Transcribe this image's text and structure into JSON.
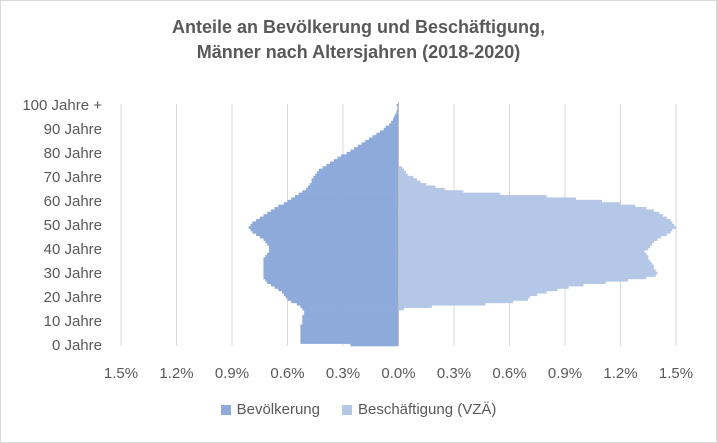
{
  "chart_data": {
    "type": "bar",
    "orientation": "horizontal-pyramid",
    "title_line1": "Anteile an Bevölkerung und Beschäftigung,",
    "title_line2": "Männer nach Altersjahren (2018-2020)",
    "xlabel": "",
    "ylabel": "",
    "xlim": [
      -1.5,
      1.5
    ],
    "x_ticks": [
      -1.5,
      -1.2,
      -0.9,
      -0.6,
      -0.3,
      0.0,
      0.3,
      0.6,
      0.9,
      1.2,
      1.5
    ],
    "x_tick_labels": [
      "1.5%",
      "1.2%",
      "0.9%",
      "0.6%",
      "0.3%",
      "0.0%",
      "0.3%",
      "0.6%",
      "0.9%",
      "1.2%",
      "1.5%"
    ],
    "y_tick_labels": [
      "0 Jahre",
      "10 Jahre",
      "20 Jahre",
      "30 Jahre",
      "40 Jahre",
      "50 Jahre",
      "60 Jahre",
      "70 Jahre",
      "80 Jahre",
      "90 Jahre",
      "100 Jahre +"
    ],
    "grid": "vertical",
    "legend_position": "bottom",
    "ages": [
      0,
      1,
      2,
      3,
      4,
      5,
      6,
      7,
      8,
      9,
      10,
      11,
      12,
      13,
      14,
      15,
      16,
      17,
      18,
      19,
      20,
      21,
      22,
      23,
      24,
      25,
      26,
      27,
      28,
      29,
      30,
      31,
      32,
      33,
      34,
      35,
      36,
      37,
      38,
      39,
      40,
      41,
      42,
      43,
      44,
      45,
      46,
      47,
      48,
      49,
      50,
      51,
      52,
      53,
      54,
      55,
      56,
      57,
      58,
      59,
      60,
      61,
      62,
      63,
      64,
      65,
      66,
      67,
      68,
      69,
      70,
      71,
      72,
      73,
      74,
      75,
      76,
      77,
      78,
      79,
      80,
      81,
      82,
      83,
      84,
      85,
      86,
      87,
      88,
      89,
      90,
      91,
      92,
      93,
      94,
      95,
      96,
      97,
      98,
      99,
      100
    ],
    "series": [
      {
        "name": "Bevölkerung",
        "color": "#8eaadb",
        "values": [
          0.26,
          0.53,
          0.53,
          0.53,
          0.53,
          0.53,
          0.53,
          0.53,
          0.53,
          0.52,
          0.52,
          0.52,
          0.52,
          0.51,
          0.51,
          0.52,
          0.53,
          0.55,
          0.58,
          0.6,
          0.61,
          0.62,
          0.63,
          0.65,
          0.67,
          0.69,
          0.71,
          0.72,
          0.73,
          0.73,
          0.73,
          0.73,
          0.73,
          0.73,
          0.73,
          0.73,
          0.73,
          0.72,
          0.71,
          0.7,
          0.7,
          0.7,
          0.71,
          0.72,
          0.73,
          0.75,
          0.77,
          0.79,
          0.8,
          0.81,
          0.8,
          0.79,
          0.77,
          0.75,
          0.73,
          0.71,
          0.69,
          0.67,
          0.65,
          0.62,
          0.6,
          0.58,
          0.56,
          0.54,
          0.52,
          0.5,
          0.49,
          0.48,
          0.47,
          0.47,
          0.46,
          0.45,
          0.44,
          0.43,
          0.41,
          0.39,
          0.37,
          0.35,
          0.33,
          0.31,
          0.28,
          0.26,
          0.24,
          0.22,
          0.2,
          0.18,
          0.16,
          0.14,
          0.12,
          0.1,
          0.08,
          0.07,
          0.05,
          0.04,
          0.03,
          0.025,
          0.018,
          0.012,
          0.008,
          0.005,
          0.01
        ]
      },
      {
        "name": "Beschäftigung (VZÄ)",
        "color": "#b4c7e7",
        "values": [
          0,
          0,
          0,
          0,
          0,
          0,
          0,
          0,
          0,
          0,
          0,
          0,
          0,
          0,
          0,
          0.03,
          0.18,
          0.47,
          0.62,
          0.7,
          0.71,
          0.75,
          0.8,
          0.86,
          0.92,
          1.0,
          1.12,
          1.24,
          1.34,
          1.39,
          1.4,
          1.39,
          1.38,
          1.38,
          1.37,
          1.36,
          1.35,
          1.35,
          1.34,
          1.33,
          1.35,
          1.36,
          1.37,
          1.38,
          1.4,
          1.42,
          1.45,
          1.47,
          1.48,
          1.5,
          1.49,
          1.48,
          1.47,
          1.45,
          1.43,
          1.41,
          1.38,
          1.34,
          1.28,
          1.2,
          1.1,
          0.96,
          0.8,
          0.55,
          0.35,
          0.25,
          0.2,
          0.15,
          0.12,
          0.1,
          0.08,
          0.05,
          0.04,
          0.03,
          0.02,
          0,
          0,
          0,
          0,
          0,
          0,
          0,
          0,
          0,
          0,
          0,
          0,
          0,
          0,
          0,
          0,
          0,
          0,
          0,
          0,
          0,
          0,
          0,
          0,
          0,
          0
        ]
      }
    ]
  }
}
